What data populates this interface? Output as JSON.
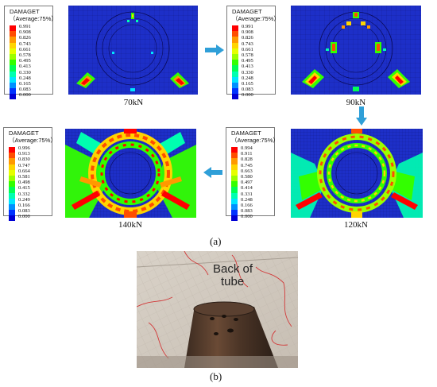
{
  "legend": {
    "title": "DAMAGET",
    "subtitle": "（Average:75%）",
    "colors": [
      "#ff0000",
      "#ff4d00",
      "#ff9900",
      "#ffd400",
      "#e6ff00",
      "#9cff00",
      "#33ff00",
      "#00ff55",
      "#00ffb0",
      "#00e6ff",
      "#0090ff",
      "#0033ff",
      "#0000d4"
    ]
  },
  "panels": [
    {
      "load": "70kN",
      "values": [
        "0.991",
        "0.908",
        "0.826",
        "0.743",
        "0.661",
        "0.578",
        "0.495",
        "0.413",
        "0.330",
        "0.248",
        "0.165",
        "0.083",
        "0.000"
      ]
    },
    {
      "load": "90kN",
      "values": [
        "0.991",
        "0.908",
        "0.826",
        "0.743",
        "0.661",
        "0.578",
        "0.495",
        "0.413",
        "0.330",
        "0.248",
        "0.165",
        "0.083",
        "0.000"
      ]
    },
    {
      "load": "140kN",
      "values": [
        "0.996",
        "0.913",
        "0.830",
        "0.747",
        "0.664",
        "0.581",
        "0.498",
        "0.415",
        "0.332",
        "0.249",
        "0.166",
        "0.083",
        "0.000"
      ]
    },
    {
      "load": "120kN",
      "values": [
        "0.994",
        "0.911",
        "0.828",
        "0.745",
        "0.663",
        "0.580",
        "0.497",
        "0.414",
        "0.331",
        "0.248",
        "0.166",
        "0.083",
        "0.000"
      ]
    }
  ],
  "captions": {
    "a": "(a)",
    "b": "(b)"
  },
  "photo": {
    "text_line1": "Back of",
    "text_line2": "tube"
  }
}
